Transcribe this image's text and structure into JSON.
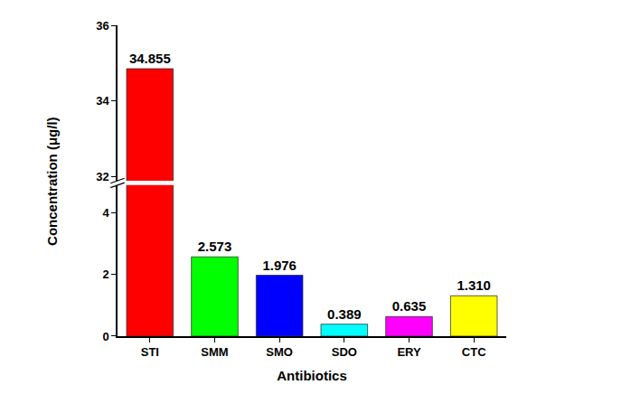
{
  "chart_data": {
    "type": "bar",
    "x_label": "Antibiotics",
    "y_label": "Concentration (μg/l)",
    "categories": [
      "STI",
      "SMM",
      "SMO",
      "SDO",
      "ERY",
      "CTC"
    ],
    "values": [
      34.855,
      2.573,
      1.976,
      0.389,
      0.635,
      1.31
    ],
    "value_labels": [
      "34.855",
      "2.573",
      "1.976",
      "0.389",
      "0.635",
      "1.310"
    ],
    "colors": [
      "#ff0000",
      "#00ff00",
      "#0000ff",
      "#00ffff",
      "#ff00ff",
      "#ffff00"
    ],
    "ylim": [
      [
        0,
        4.9
      ],
      [
        31.9,
        36
      ]
    ],
    "yticks": [
      0,
      2,
      4,
      32,
      34,
      36
    ],
    "data_labels": true,
    "grid": false
  }
}
